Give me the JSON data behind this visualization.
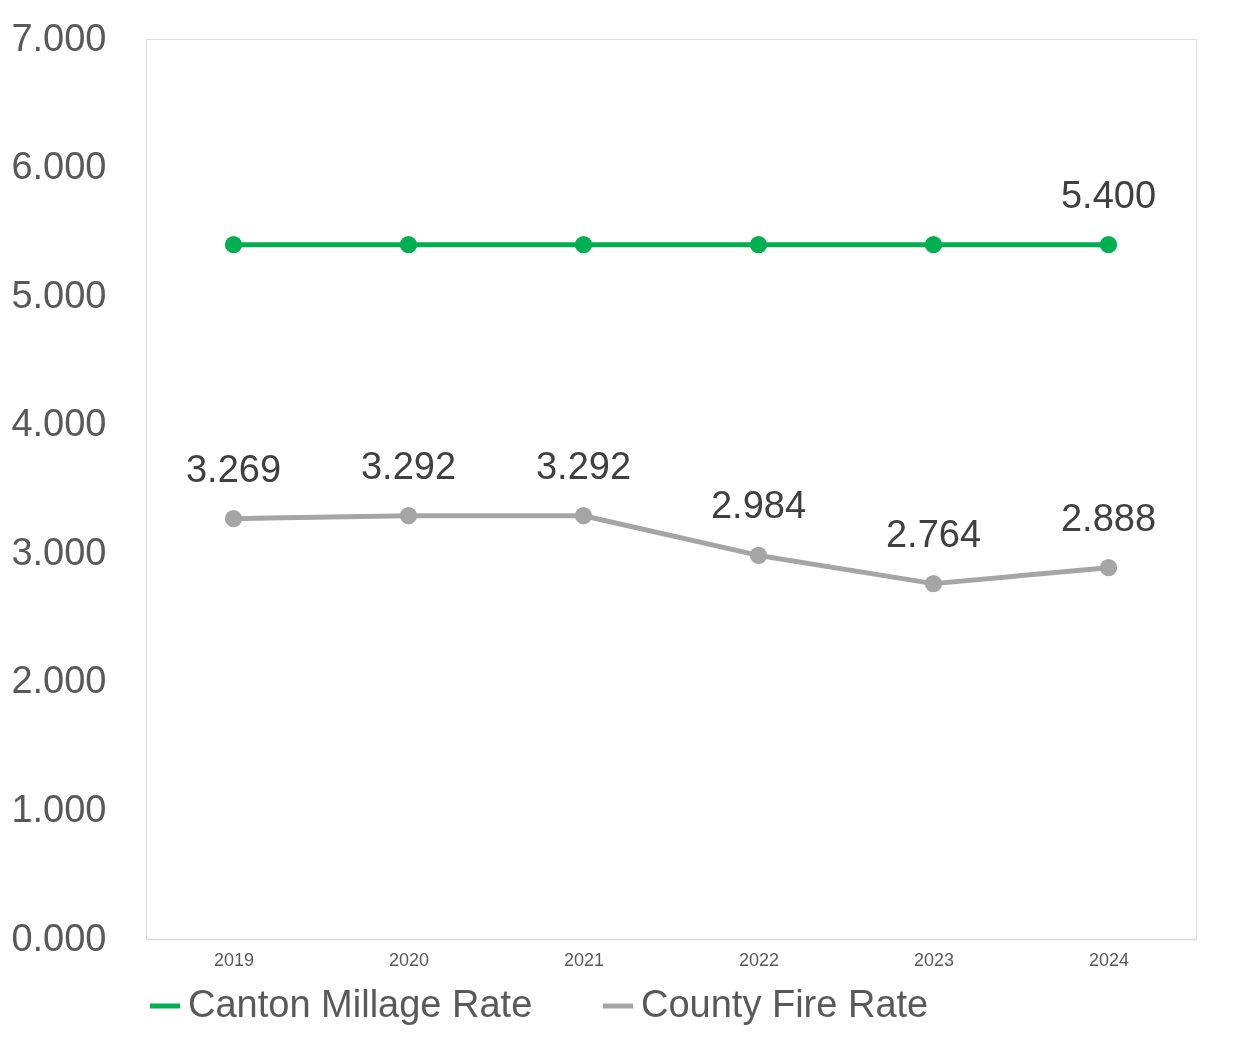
{
  "chart_data": {
    "type": "line",
    "categories": [
      "2019",
      "2020",
      "2021",
      "2022",
      "2023",
      "2024"
    ],
    "series": [
      {
        "name": "Canton Millage Rate",
        "color": "#00b050",
        "values": [
          5.4,
          5.4,
          5.4,
          5.4,
          5.4,
          5.4
        ],
        "value_labels": [
          null,
          null,
          null,
          null,
          null,
          "5.400"
        ]
      },
      {
        "name": "County Fire Rate",
        "color": "#a5a5a5",
        "values": [
          3.269,
          3.292,
          3.292,
          2.984,
          2.764,
          2.888
        ],
        "value_labels": [
          "3.269",
          "3.292",
          "3.292",
          "2.984",
          "2.764",
          "2.888"
        ]
      }
    ],
    "ylim": [
      0,
      7
    ],
    "yticks": [
      {
        "value": 0,
        "label": "0.000"
      },
      {
        "value": 1,
        "label": "1.000"
      },
      {
        "value": 2,
        "label": "2.000"
      },
      {
        "value": 3,
        "label": "3.000"
      },
      {
        "value": 4,
        "label": "4.000"
      },
      {
        "value": 5,
        "label": "5.000"
      },
      {
        "value": 6,
        "label": "6.000"
      },
      {
        "value": 7,
        "label": "7.000"
      }
    ],
    "grid": false,
    "legend": "bottom",
    "marker": "circle",
    "line_style": "solid"
  }
}
